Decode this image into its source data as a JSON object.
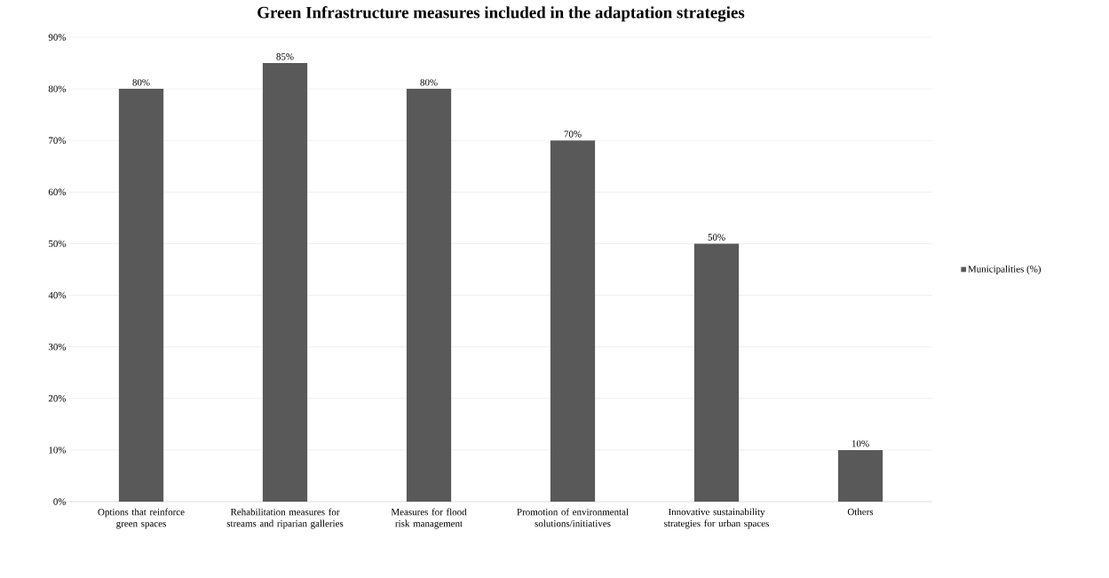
{
  "chart_data": {
    "type": "bar",
    "title": "Green Infrastructure measures included in the adaptation strategies",
    "categories": [
      "Options that reinforce green spaces",
      "Rehabilitation measures for streams and riparian galleries",
      "Measures for flood risk management",
      "Promotion of environmental solutions/initiatives",
      "Innovative sustainability strategies for urban spaces",
      "Others"
    ],
    "series": [
      {
        "name": "Municipalities (%)",
        "color": "#595959",
        "values": [
          80,
          85,
          80,
          70,
          50,
          10
        ],
        "value_labels": [
          "80%",
          "85%",
          "80%",
          "70%",
          "50%",
          "10%"
        ]
      }
    ],
    "ylim": [
      0,
      90
    ],
    "yticks": [
      {
        "value": 0,
        "label": "0%"
      },
      {
        "value": 10,
        "label": "10%"
      },
      {
        "value": 20,
        "label": "20%"
      },
      {
        "value": 30,
        "label": "30%"
      },
      {
        "value": 40,
        "label": "40%"
      },
      {
        "value": 50,
        "label": "50%"
      },
      {
        "value": 60,
        "label": "60%"
      },
      {
        "value": 70,
        "label": "70%"
      },
      {
        "value": 80,
        "label": "80%"
      },
      {
        "value": 90,
        "label": "90%"
      }
    ],
    "grid": "y",
    "legend": "right"
  }
}
